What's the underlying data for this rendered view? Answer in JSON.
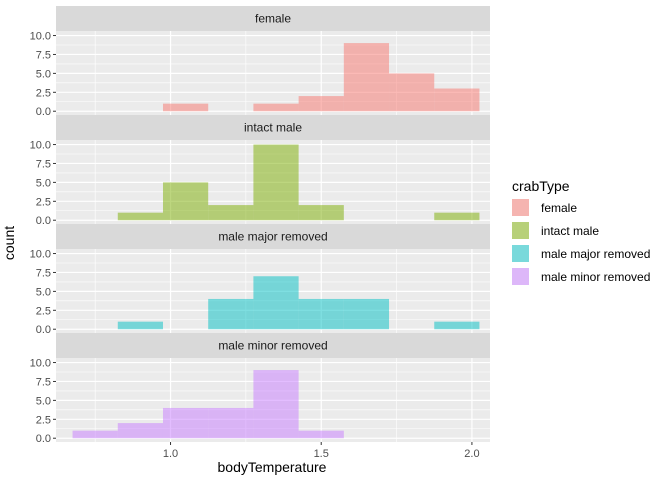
{
  "chart_data": {
    "type": "bar",
    "subtype": "faceted-histogram",
    "xlabel": "bodyTemperature",
    "ylabel": "count",
    "xlim": [
      0.62,
      2.06
    ],
    "ylim": [
      -0.5,
      10.6
    ],
    "x_ticks": [
      1.0,
      1.5,
      2.0
    ],
    "x_tick_labels": [
      "1.0",
      "1.5",
      "2.0"
    ],
    "y_ticks": [
      0,
      2.5,
      5,
      7.5,
      10
    ],
    "y_tick_labels": [
      "0.0",
      "2.5",
      "5.0",
      "7.5",
      "10.0"
    ],
    "grid": true,
    "bin_width": 0.15,
    "bins": [
      [
        0.675,
        0.825
      ],
      [
        0.825,
        0.975
      ],
      [
        0.975,
        1.125
      ],
      [
        1.125,
        1.275
      ],
      [
        1.275,
        1.425
      ],
      [
        1.425,
        1.575
      ],
      [
        1.575,
        1.725
      ],
      [
        1.725,
        1.875
      ],
      [
        1.875,
        2.025
      ]
    ],
    "series": [
      {
        "name": "female",
        "color": "#F8766D",
        "counts": [
          0,
          0,
          1,
          0,
          1,
          2,
          9,
          5,
          3
        ]
      },
      {
        "name": "intact male",
        "color": "#7CAE00",
        "counts": [
          0,
          1,
          5,
          2,
          10,
          2,
          0,
          0,
          1
        ]
      },
      {
        "name": "male major removed",
        "color": "#00BFC4",
        "counts": [
          0,
          1,
          0,
          4,
          7,
          4,
          4,
          0,
          1
        ]
      },
      {
        "name": "male minor removed",
        "color": "#C77CFF",
        "counts": [
          1,
          2,
          4,
          4,
          9,
          1,
          0,
          0,
          0
        ]
      }
    ],
    "legend": {
      "title": "crabType",
      "position": "right"
    }
  }
}
